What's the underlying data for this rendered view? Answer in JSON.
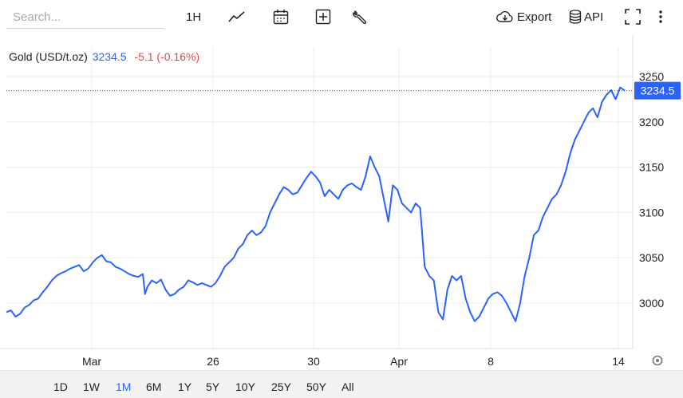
{
  "toolbar": {
    "search_placeholder": "Search...",
    "interval_label": "1H",
    "export_label": "Export",
    "api_label": "API"
  },
  "legend": {
    "symbol": "Gold (USD/t.oz)",
    "value": "3234.5",
    "change": "-5.1 (-0.16%)"
  },
  "price_tag": "3234.5",
  "periods": [
    "1D",
    "1W",
    "1M",
    "6M",
    "1Y",
    "5Y",
    "10Y",
    "25Y",
    "50Y",
    "All"
  ],
  "active_period": "1M",
  "colors": {
    "line": "#2962ff",
    "down": "#e0494c",
    "tag_bg": "#2962ff",
    "grid": "#ececec"
  },
  "chart_data": {
    "type": "line",
    "series": [
      {
        "name": "Gold (USD/t.oz)",
        "values": []
      }
    ],
    "x_ticks": [
      "Mar",
      "26",
      "30",
      "Apr",
      "8",
      "14"
    ],
    "y_ticks": [
      3000,
      3050,
      3100,
      3150,
      3200,
      3250
    ],
    "ylim": [
      2975,
      3265
    ],
    "last_value": 3234.5,
    "grid": true,
    "points": [
      [
        0,
        2990
      ],
      [
        2,
        2992
      ],
      [
        4,
        2985
      ],
      [
        6,
        2988
      ],
      [
        8,
        2995
      ],
      [
        10,
        2998
      ],
      [
        12,
        3003
      ],
      [
        14,
        3005
      ],
      [
        16,
        3012
      ],
      [
        18,
        3018
      ],
      [
        20,
        3025
      ],
      [
        22,
        3030
      ],
      [
        24,
        3033
      ],
      [
        26,
        3035
      ],
      [
        28,
        3038
      ],
      [
        30,
        3040
      ],
      [
        32,
        3042
      ],
      [
        34,
        3035
      ],
      [
        36,
        3038
      ],
      [
        38,
        3045
      ],
      [
        40,
        3050
      ],
      [
        42,
        3053
      ],
      [
        44,
        3046
      ],
      [
        46,
        3045
      ],
      [
        48,
        3040
      ],
      [
        50,
        3038
      ],
      [
        52,
        3035
      ],
      [
        54,
        3032
      ],
      [
        56,
        3030
      ],
      [
        58,
        3029
      ],
      [
        60,
        3032
      ],
      [
        61,
        3010
      ],
      [
        62,
        3018
      ],
      [
        64,
        3025
      ],
      [
        66,
        3022
      ],
      [
        68,
        3026
      ],
      [
        70,
        3015
      ],
      [
        72,
        3008
      ],
      [
        74,
        3010
      ],
      [
        76,
        3015
      ],
      [
        78,
        3018
      ],
      [
        80,
        3025
      ],
      [
        82,
        3023
      ],
      [
        84,
        3020
      ],
      [
        86,
        3022
      ],
      [
        88,
        3020
      ],
      [
        90,
        3018
      ],
      [
        92,
        3022
      ],
      [
        94,
        3030
      ],
      [
        96,
        3040
      ],
      [
        98,
        3045
      ],
      [
        100,
        3050
      ],
      [
        102,
        3060
      ],
      [
        104,
        3065
      ],
      [
        106,
        3075
      ],
      [
        108,
        3080
      ],
      [
        110,
        3075
      ],
      [
        112,
        3078
      ],
      [
        114,
        3085
      ],
      [
        116,
        3100
      ],
      [
        118,
        3110
      ],
      [
        120,
        3120
      ],
      [
        122,
        3128
      ],
      [
        124,
        3125
      ],
      [
        126,
        3120
      ],
      [
        128,
        3122
      ],
      [
        130,
        3130
      ],
      [
        132,
        3138
      ],
      [
        134,
        3145
      ],
      [
        136,
        3140
      ],
      [
        138,
        3133
      ],
      [
        140,
        3118
      ],
      [
        142,
        3125
      ],
      [
        144,
        3120
      ],
      [
        146,
        3115
      ],
      [
        148,
        3125
      ],
      [
        150,
        3130
      ],
      [
        152,
        3132
      ],
      [
        154,
        3128
      ],
      [
        156,
        3125
      ],
      [
        158,
        3140
      ],
      [
        160,
        3162
      ],
      [
        162,
        3150
      ],
      [
        164,
        3140
      ],
      [
        166,
        3115
      ],
      [
        168,
        3090
      ],
      [
        170,
        3130
      ],
      [
        172,
        3125
      ],
      [
        174,
        3110
      ],
      [
        176,
        3105
      ],
      [
        178,
        3100
      ],
      [
        180,
        3110
      ],
      [
        182,
        3105
      ],
      [
        184,
        3040
      ],
      [
        186,
        3030
      ],
      [
        188,
        3025
      ],
      [
        190,
        2990
      ],
      [
        192,
        2982
      ],
      [
        194,
        3015
      ],
      [
        196,
        3030
      ],
      [
        198,
        3025
      ],
      [
        200,
        3030
      ],
      [
        202,
        3005
      ],
      [
        204,
        2990
      ],
      [
        206,
        2980
      ],
      [
        208,
        2985
      ],
      [
        210,
        2995
      ],
      [
        212,
        3005
      ],
      [
        214,
        3010
      ],
      [
        216,
        3012
      ],
      [
        218,
        3008
      ],
      [
        220,
        3000
      ],
      [
        222,
        2990
      ],
      [
        224,
        2980
      ],
      [
        226,
        3000
      ],
      [
        228,
        3030
      ],
      [
        230,
        3050
      ],
      [
        232,
        3075
      ],
      [
        234,
        3080
      ],
      [
        236,
        3095
      ],
      [
        238,
        3105
      ],
      [
        240,
        3115
      ],
      [
        242,
        3120
      ],
      [
        244,
        3130
      ],
      [
        246,
        3145
      ],
      [
        248,
        3165
      ],
      [
        250,
        3180
      ],
      [
        252,
        3190
      ],
      [
        254,
        3200
      ],
      [
        256,
        3210
      ],
      [
        258,
        3215
      ],
      [
        260,
        3205
      ],
      [
        262,
        3222
      ],
      [
        264,
        3230
      ],
      [
        266,
        3235
      ],
      [
        268,
        3225
      ],
      [
        270,
        3238
      ],
      [
        272,
        3234.5
      ]
    ]
  }
}
